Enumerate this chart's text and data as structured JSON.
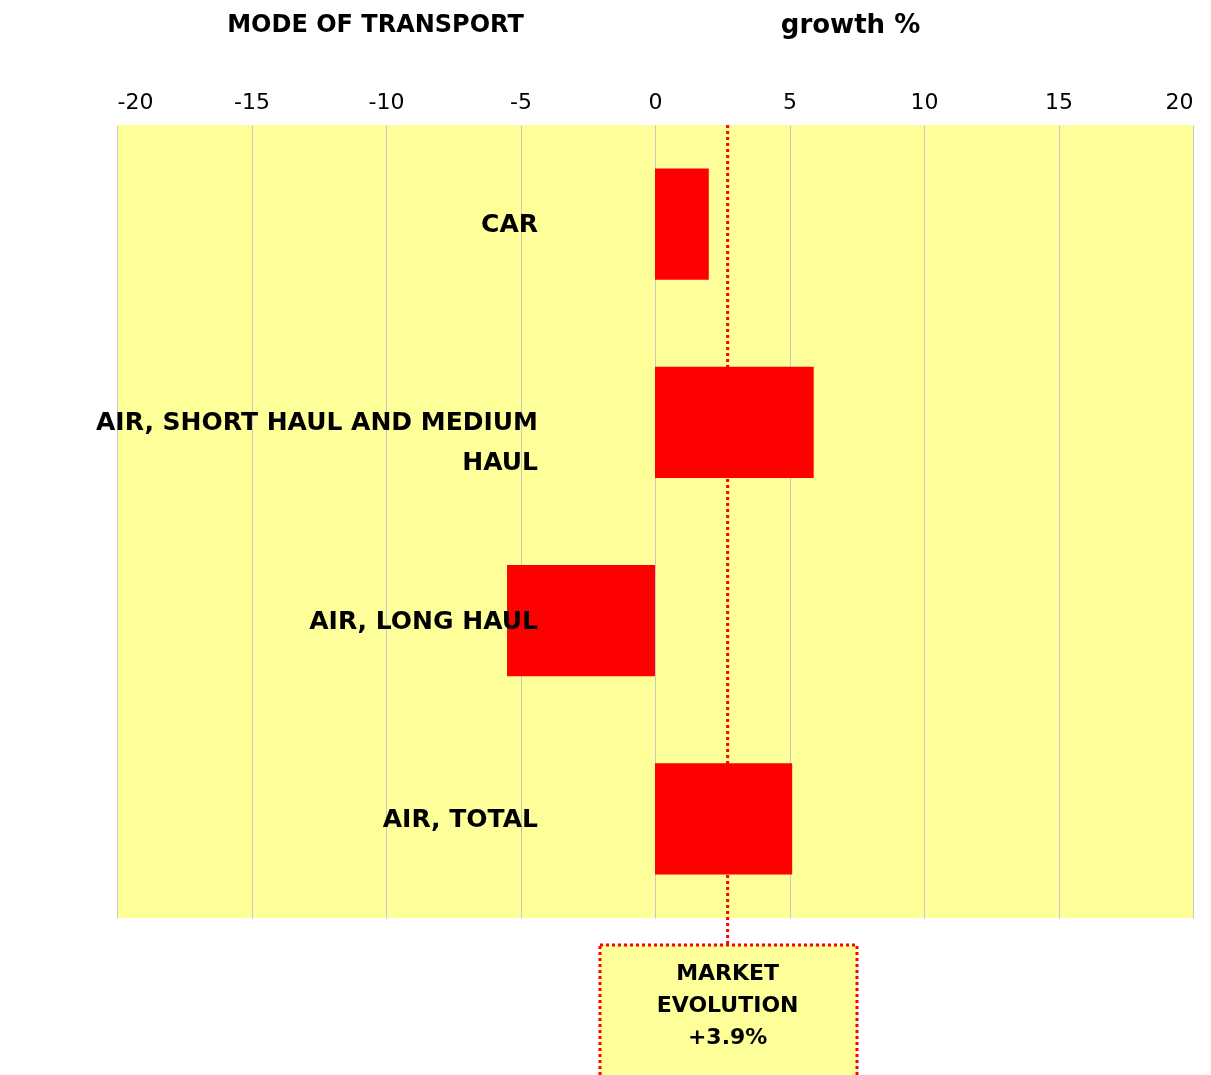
{
  "chart_data": {
    "type": "bar",
    "orientation": "horizontal",
    "xlabel": "growth %",
    "ylabel": "MODE OF TRANSPORT",
    "categories": [
      "CAR",
      "AIR, SHORT HAUL AND MEDIUM HAUL",
      "AIR, LONG HAUL",
      "AIR, TOTAL"
    ],
    "values": [
      2.0,
      5.9,
      -5.5,
      5.1
    ],
    "color": "#ff0000",
    "xlim": [
      -20,
      20
    ],
    "xticks": [
      -20,
      -15,
      -10,
      -5,
      0,
      5,
      10,
      15,
      20
    ],
    "grid": "x",
    "ref_lines": [
      {
        "axis": "x",
        "value": 2.7,
        "label": "MARKET EVOLUTION +3.9%",
        "color": "#ff0000",
        "line_style": "dotted"
      }
    ]
  }
}
